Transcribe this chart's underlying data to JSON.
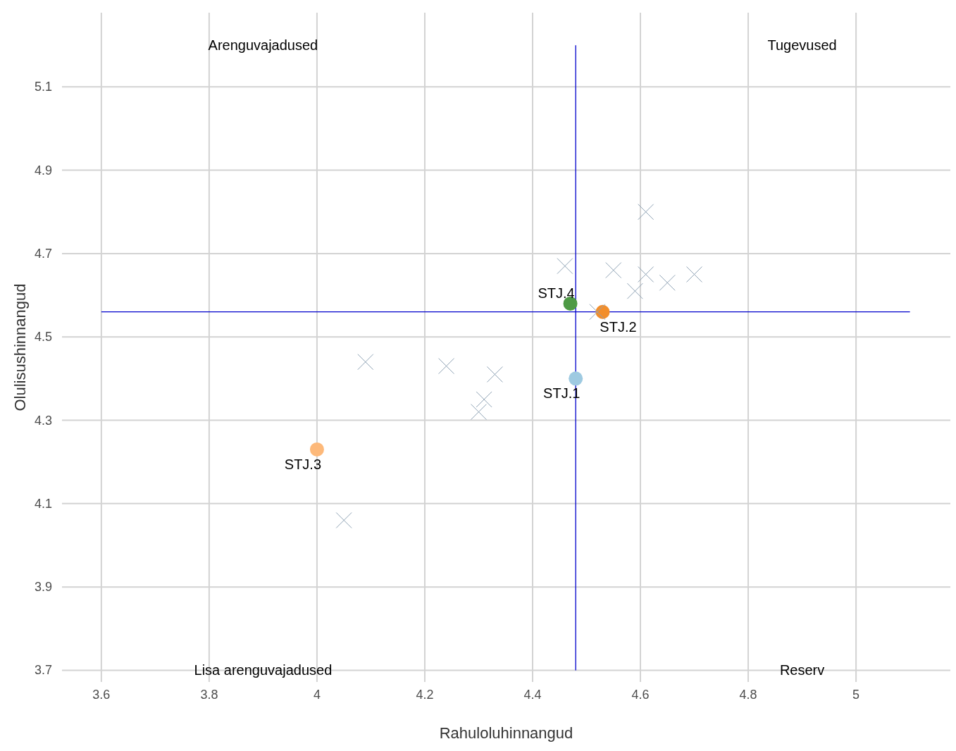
{
  "chart_data": {
    "type": "scatter",
    "xlabel": "Rahuloluhinnangud",
    "ylabel": "Olulisushinnangud",
    "xlim": [
      3.527,
      5.175
    ],
    "ylim": [
      3.672,
      5.278
    ],
    "xticks": [
      3.6,
      3.8,
      {
        "value": 4,
        "label": "4"
      },
      4.2,
      4.4,
      4.6,
      4.8,
      {
        "value": 5,
        "label": "5"
      }
    ],
    "yticks": [
      3.7,
      3.9,
      4.1,
      4.3,
      4.5,
      4.7,
      4.9,
      5.1
    ],
    "grid": true,
    "annotations": [
      "Arenguvajadused",
      "Tugevused",
      "Lisa arenguvajadused",
      "Reserv"
    ],
    "ref_lines": [
      {
        "axis": "x",
        "value": 4.48,
        "color": "#0000cc"
      },
      {
        "axis": "y",
        "value": 4.56,
        "color": "#0000cc"
      }
    ],
    "series": [
      {
        "color": "#8fa3b5",
        "marker": "cross",
        "x": [
          4.61,
          4.46,
          4.55,
          4.61,
          4.59,
          4.65,
          4.7,
          4.52,
          4.09,
          4.24,
          4.33,
          4.31,
          4.3,
          4.05
        ],
        "values": [
          4.8,
          4.67,
          4.66,
          4.65,
          4.61,
          4.63,
          4.65,
          4.56,
          4.44,
          4.43,
          4.41,
          4.35,
          4.32,
          4.06
        ]
      },
      {
        "name": "STJ.1",
        "color": "#9ecae1",
        "marker": "circle",
        "x": [
          4.48
        ],
        "values": [
          4.4
        ]
      },
      {
        "name": "STJ.2",
        "color": "#f28e2b",
        "marker": "circle",
        "x": [
          4.53
        ],
        "values": [
          4.56
        ]
      },
      {
        "name": "STJ.3",
        "color": "#fdb97a",
        "marker": "circle",
        "x": [
          4.0
        ],
        "values": [
          4.23
        ]
      },
      {
        "name": "STJ.4",
        "color": "#4e9a45",
        "marker": "circle",
        "x": [
          4.47
        ],
        "values": [
          4.58
        ]
      }
    ]
  }
}
